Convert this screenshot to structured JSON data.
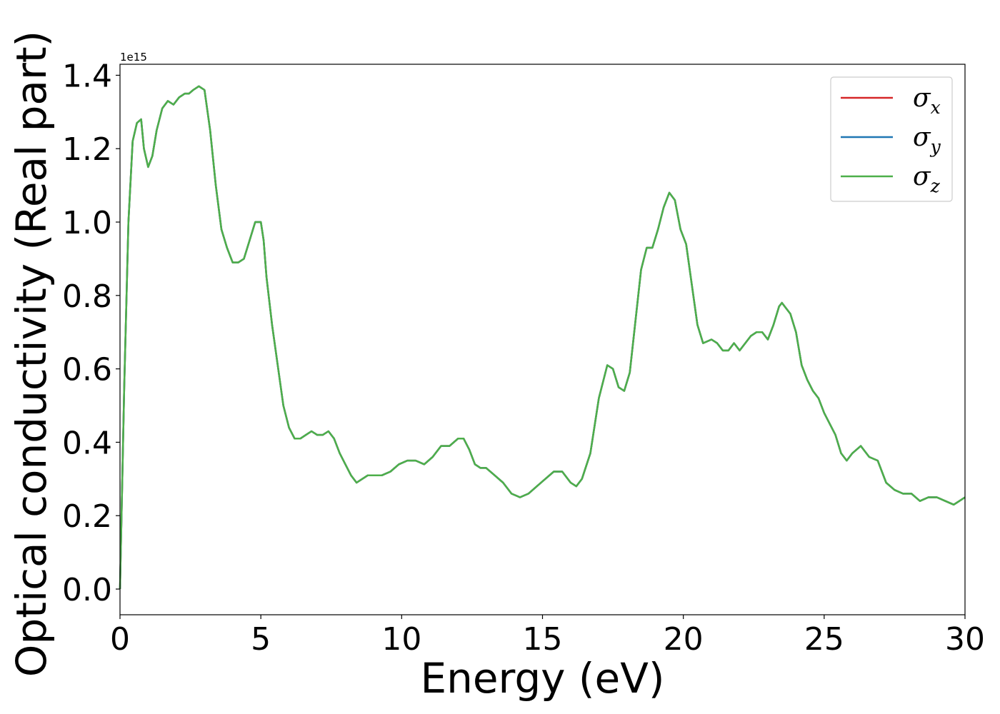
{
  "chart_data": {
    "type": "line",
    "xlabel": "Energy (eV)",
    "ylabel": "Optical conductivity (Real part)",
    "y_offset_text": "1e15",
    "xlim": [
      0,
      30
    ],
    "ylim": [
      -0.07,
      1.43
    ],
    "x_ticks": [
      0,
      5,
      10,
      15,
      20,
      25,
      30
    ],
    "x_tick_labels": [
      "0",
      "5",
      "10",
      "15",
      "20",
      "25",
      "30"
    ],
    "y_ticks": [
      0.0,
      0.2,
      0.4,
      0.6,
      0.8,
      1.0,
      1.2,
      1.4
    ],
    "y_tick_labels": [
      "0.0",
      "0.2",
      "0.4",
      "0.6",
      "0.8",
      "1.0",
      "1.2",
      "1.4"
    ],
    "grid": false,
    "legend_position": "top-right",
    "colors": {
      "sigma_x": "#d62728",
      "sigma_y": "#1f77b4",
      "sigma_z": "#4daf4a"
    },
    "series": [
      {
        "name": "σx",
        "base": "σ",
        "sub": "x",
        "color": "#d62728",
        "ref": "shared"
      },
      {
        "name": "σy",
        "base": "σ",
        "sub": "y",
        "color": "#1f77b4",
        "ref": "shared"
      },
      {
        "name": "σz",
        "base": "σ",
        "sub": "z",
        "color": "#4daf4a",
        "ref": "shared"
      }
    ],
    "shared_curve": {
      "x": [
        0,
        0.15,
        0.3,
        0.45,
        0.6,
        0.75,
        0.85,
        1.0,
        1.15,
        1.3,
        1.5,
        1.7,
        1.9,
        2.1,
        2.3,
        2.45,
        2.6,
        2.8,
        3.0,
        3.2,
        3.4,
        3.6,
        3.8,
        4.0,
        4.2,
        4.4,
        4.6,
        4.8,
        5.0,
        5.1,
        5.2,
        5.4,
        5.6,
        5.8,
        6.0,
        6.2,
        6.4,
        6.6,
        6.8,
        7.0,
        7.2,
        7.4,
        7.6,
        7.8,
        8.0,
        8.2,
        8.4,
        8.6,
        8.8,
        9.0,
        9.3,
        9.6,
        9.9,
        10.2,
        10.5,
        10.8,
        11.1,
        11.4,
        11.7,
        12.0,
        12.2,
        12.4,
        12.6,
        12.8,
        13.0,
        13.3,
        13.6,
        13.9,
        14.2,
        14.5,
        14.8,
        15.1,
        15.4,
        15.7,
        16.0,
        16.2,
        16.4,
        16.7,
        17.0,
        17.3,
        17.5,
        17.7,
        17.9,
        18.1,
        18.3,
        18.5,
        18.7,
        18.9,
        19.1,
        19.3,
        19.5,
        19.7,
        19.9,
        20.1,
        20.3,
        20.5,
        20.7,
        21.0,
        21.2,
        21.4,
        21.6,
        21.8,
        22.0,
        22.2,
        22.4,
        22.6,
        22.8,
        23.0,
        23.2,
        23.4,
        23.5,
        23.6,
        23.8,
        24.0,
        24.2,
        24.4,
        24.6,
        24.8,
        25.0,
        25.2,
        25.4,
        25.6,
        25.8,
        26.0,
        26.3,
        26.6,
        26.9,
        27.2,
        27.5,
        27.8,
        28.1,
        28.4,
        28.7,
        29.0,
        29.3,
        29.6,
        29.8,
        30.0
      ],
      "y": [
        0.0,
        0.55,
        1.0,
        1.22,
        1.27,
        1.28,
        1.2,
        1.15,
        1.18,
        1.25,
        1.31,
        1.33,
        1.32,
        1.34,
        1.35,
        1.35,
        1.36,
        1.37,
        1.36,
        1.25,
        1.1,
        0.98,
        0.93,
        0.89,
        0.89,
        0.9,
        0.95,
        1.0,
        1.0,
        0.95,
        0.85,
        0.72,
        0.61,
        0.5,
        0.44,
        0.41,
        0.41,
        0.42,
        0.43,
        0.42,
        0.42,
        0.43,
        0.41,
        0.37,
        0.34,
        0.31,
        0.29,
        0.3,
        0.31,
        0.31,
        0.31,
        0.32,
        0.34,
        0.35,
        0.35,
        0.34,
        0.36,
        0.39,
        0.39,
        0.41,
        0.41,
        0.38,
        0.34,
        0.33,
        0.33,
        0.31,
        0.29,
        0.26,
        0.25,
        0.26,
        0.28,
        0.3,
        0.32,
        0.32,
        0.29,
        0.28,
        0.3,
        0.37,
        0.52,
        0.61,
        0.6,
        0.55,
        0.54,
        0.59,
        0.73,
        0.87,
        0.93,
        0.93,
        0.98,
        1.04,
        1.08,
        1.06,
        0.98,
        0.94,
        0.83,
        0.72,
        0.67,
        0.68,
        0.67,
        0.65,
        0.65,
        0.67,
        0.65,
        0.67,
        0.69,
        0.7,
        0.7,
        0.68,
        0.72,
        0.77,
        0.78,
        0.77,
        0.75,
        0.7,
        0.61,
        0.57,
        0.54,
        0.52,
        0.48,
        0.45,
        0.42,
        0.37,
        0.35,
        0.37,
        0.39,
        0.36,
        0.35,
        0.29,
        0.27,
        0.26,
        0.26,
        0.24,
        0.25,
        0.25,
        0.24,
        0.23,
        0.24,
        0.25
      ]
    }
  }
}
